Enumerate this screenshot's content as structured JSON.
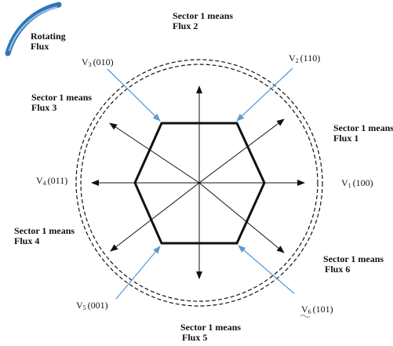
{
  "rotating_flux": {
    "line1": "Rotating",
    "line2": "Flux"
  },
  "sectors": [
    {
      "id": "top",
      "line1": "Sector 1 means",
      "line2": "Flux 2"
    },
    {
      "id": "upper-left",
      "line1": "Sector 1 means",
      "line2": "Flux 3"
    },
    {
      "id": "upper-right",
      "line1": "Sector 1 means",
      "line2": "Flux 1"
    },
    {
      "id": "lower-left",
      "line1": "Sector 1 means",
      "line2": "Flux 4"
    },
    {
      "id": "lower-right",
      "line1": "Sector 1 means",
      "line2": "Flux 6"
    },
    {
      "id": "bottom",
      "line1": "Sector 1 means",
      "line2": "Flux 5"
    }
  ],
  "vectors": [
    {
      "id": "v1",
      "symbol": "V",
      "sub": "1",
      "code": "(100)"
    },
    {
      "id": "v2",
      "symbol": "V",
      "sub": "2",
      "code": "(110)"
    },
    {
      "id": "v3",
      "symbol": "V",
      "sub": "3",
      "code": "(010)"
    },
    {
      "id": "v4",
      "symbol": "V",
      "sub": "4",
      "code": "(011)"
    },
    {
      "id": "v5",
      "symbol": "V",
      "sub": "5",
      "code": "(001)"
    },
    {
      "id": "v6",
      "symbol": "V",
      "sub": "6",
      "code": "(101)"
    }
  ],
  "colors": {
    "pointer_blue": "#5b9bd5",
    "flux_arc_blue": "#2e75b6",
    "line": "#111111"
  }
}
